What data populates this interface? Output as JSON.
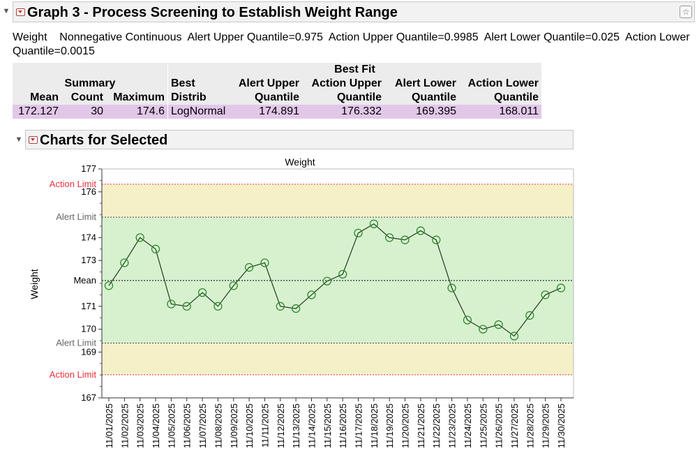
{
  "report": {
    "title": "Graph 3 - Process Screening to Establish Weight Range",
    "spec_line": "Weight    Nonnegative Continuous  Alert Upper Quantile=0.975  Action Upper Quantile=0.9985  Alert Lower Quantile=0.025  Action Lower Quantile=0.0015"
  },
  "table": {
    "group_summary": "Summary",
    "group_bestfit": "Best Fit",
    "col_mean": "Mean",
    "col_count": "Count",
    "col_maximum": "Maximum",
    "col_best_1": "Best",
    "col_best_2": "Distrib",
    "col_alert_upper_1": "Alert Upper",
    "col_alert_upper_2": "Quantile",
    "col_action_upper_1": "Action Upper",
    "col_action_upper_2": "Quantile",
    "col_alert_lower_1": "Alert Lower",
    "col_alert_lower_2": "Quantile",
    "col_action_lower_1": "Action Lower",
    "col_action_lower_2": "Quantile",
    "row": {
      "mean": "172.127",
      "count": "30",
      "maximum": "174.6",
      "distrib": "LogNormal",
      "alert_upper": "174.891",
      "action_upper": "176.332",
      "alert_lower": "169.395",
      "action_lower": "168.011"
    }
  },
  "charts_section": {
    "title": "Charts for Selected"
  },
  "chart_data": {
    "type": "line",
    "title": "Weight",
    "ylabel": "Weight",
    "xlabel": "",
    "ylim": [
      167,
      177
    ],
    "yticks": [
      "177",
      "176",
      "174",
      "173",
      "171",
      "170",
      "169",
      "167"
    ],
    "categories": [
      "11/01/2025",
      "11/02/2025",
      "11/03/2025",
      "11/04/2025",
      "11/05/2025",
      "11/06/2025",
      "11/07/2025",
      "11/08/2025",
      "11/09/2025",
      "11/10/2025",
      "11/11/2025",
      "11/12/2025",
      "11/13/2025",
      "11/14/2025",
      "11/15/2025",
      "11/16/2025",
      "11/17/2025",
      "11/18/2025",
      "11/19/2025",
      "11/20/2025",
      "11/21/2025",
      "11/22/2025",
      "11/23/2025",
      "11/24/2025",
      "11/25/2025",
      "11/26/2025",
      "11/27/2025",
      "11/28/2025",
      "11/29/2025",
      "11/30/2025"
    ],
    "values": [
      171.9,
      172.9,
      174.0,
      173.5,
      171.1,
      171.0,
      171.6,
      171.0,
      171.9,
      172.7,
      172.9,
      171.0,
      170.9,
      171.5,
      172.1,
      172.4,
      174.2,
      174.6,
      174.0,
      173.9,
      174.3,
      173.9,
      171.8,
      170.4,
      170.0,
      170.2,
      169.7,
      170.6,
      171.5,
      171.8
    ],
    "limits": {
      "action_upper": 176.332,
      "alert_upper": 174.891,
      "mean": 172.127,
      "alert_lower": 169.395,
      "action_lower": 168.011
    },
    "limit_labels": {
      "action": "Action Limit",
      "alert": "Alert Limit",
      "mean": "Mean"
    },
    "colors": {
      "action_zone": "#f6f0c8",
      "alert_zone": "#d7f1cf",
      "action_line": "#e8303a",
      "marker": "#2e8b2e",
      "line": "#1f3a1f"
    },
    "grid": false,
    "legend": "none"
  }
}
